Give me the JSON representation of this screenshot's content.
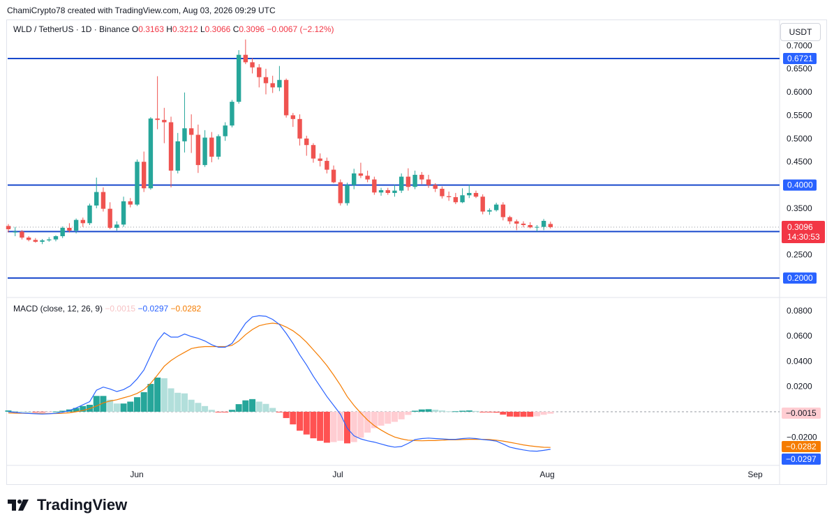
{
  "header": {
    "attribution": "ChamiCrypto78 created with TradingView.com, Aug 03, 2026 09:29 UTC",
    "symbol": "WLD / TetherUS · 1D · Binance",
    "o_label": "O",
    "o_value": "0.3163",
    "h_label": "H",
    "h_value": "0.3212",
    "l_label": "L",
    "l_value": "0.3066",
    "c_label": "C",
    "c_value": "0.3096",
    "change": "−0.0067 (−2.12%)",
    "currency_button": "USDT"
  },
  "macd_legend": {
    "title": "MACD (close, 12, 26, 9)",
    "hist": "−0.0015",
    "macd": "−0.0297",
    "signal": "−0.0282"
  },
  "footer": {
    "brand": "TradingView",
    "logo_icon": "tradingview-logo-icon"
  },
  "colors": {
    "up": "#26a69a",
    "down": "#ef5350",
    "level": "#1848cc",
    "macd": "#2962ff",
    "signal": "#f57c00",
    "tag_blue": "#2962ff",
    "tag_red": "#f23645"
  },
  "chart_data": [
    {
      "type": "candlestick",
      "ylim": [
        0.18,
        0.72
      ],
      "y_ticks": [
        "0.7000",
        "0.6500",
        "0.6000",
        "0.5500",
        "0.5000",
        "0.4500",
        "0.4000",
        "0.3500",
        "0.3000",
        "0.2500",
        "0.2000"
      ],
      "x_ticks": [
        "Jun",
        "Jul",
        "Aug",
        "Sep"
      ],
      "horizontal_levels": [
        {
          "value": 0.6721,
          "label": "0.6721"
        },
        {
          "value": 0.4,
          "label": "0.4000"
        },
        {
          "value": 0.3,
          "label": "0.3000"
        },
        {
          "value": 0.2,
          "label": "0.2000"
        }
      ],
      "last_price": {
        "value": 0.3096,
        "label": "0.3096",
        "countdown": "14:30:53"
      },
      "ohlc": [
        [
          0.312,
          0.316,
          0.298,
          0.305
        ],
        [
          0.298,
          0.31,
          0.29,
          0.3
        ],
        [
          0.3,
          0.303,
          0.283,
          0.287
        ],
        [
          0.287,
          0.29,
          0.279,
          0.282
        ],
        [
          0.282,
          0.286,
          0.276,
          0.278
        ],
        [
          0.278,
          0.284,
          0.273,
          0.281
        ],
        [
          0.281,
          0.288,
          0.278,
          0.283
        ],
        [
          0.283,
          0.292,
          0.279,
          0.29
        ],
        [
          0.29,
          0.311,
          0.286,
          0.308
        ],
        [
          0.308,
          0.318,
          0.298,
          0.302
        ],
        [
          0.302,
          0.328,
          0.296,
          0.325
        ],
        [
          0.325,
          0.33,
          0.31,
          0.318
        ],
        [
          0.318,
          0.36,
          0.314,
          0.356
        ],
        [
          0.356,
          0.416,
          0.35,
          0.385
        ],
        [
          0.385,
          0.395,
          0.343,
          0.349
        ],
        [
          0.349,
          0.363,
          0.305,
          0.308
        ],
        [
          0.308,
          0.322,
          0.302,
          0.315
        ],
        [
          0.315,
          0.375,
          0.31,
          0.365
        ],
        [
          0.365,
          0.372,
          0.352,
          0.358
        ],
        [
          0.358,
          0.455,
          0.355,
          0.45
        ],
        [
          0.45,
          0.472,
          0.385,
          0.393
        ],
        [
          0.393,
          0.546,
          0.39,
          0.543
        ],
        [
          0.543,
          0.634,
          0.52,
          0.54
        ],
        [
          0.54,
          0.566,
          0.49,
          0.535
        ],
        [
          0.535,
          0.547,
          0.395,
          0.431
        ],
        [
          0.431,
          0.512,
          0.425,
          0.494
        ],
        [
          0.494,
          0.599,
          0.47,
          0.522
        ],
        [
          0.522,
          0.552,
          0.469,
          0.508
        ],
        [
          0.508,
          0.53,
          0.426,
          0.443
        ],
        [
          0.443,
          0.518,
          0.439,
          0.502
        ],
        [
          0.502,
          0.514,
          0.449,
          0.461
        ],
        [
          0.461,
          0.509,
          0.455,
          0.505
        ],
        [
          0.505,
          0.535,
          0.495,
          0.528
        ],
        [
          0.528,
          0.583,
          0.524,
          0.579
        ],
        [
          0.579,
          0.69,
          0.575,
          0.68
        ],
        [
          0.68,
          0.713,
          0.66,
          0.664
        ],
        [
          0.664,
          0.673,
          0.64,
          0.653
        ],
        [
          0.653,
          0.66,
          0.61,
          0.632
        ],
        [
          0.632,
          0.65,
          0.595,
          0.619
        ],
        [
          0.619,
          0.635,
          0.598,
          0.61
        ],
        [
          0.61,
          0.656,
          0.602,
          0.626
        ],
        [
          0.626,
          0.629,
          0.545,
          0.55
        ],
        [
          0.55,
          0.555,
          0.525,
          0.542
        ],
        [
          0.542,
          0.552,
          0.485,
          0.5
        ],
        [
          0.5,
          0.506,
          0.463,
          0.486
        ],
        [
          0.486,
          0.49,
          0.448,
          0.457
        ],
        [
          0.457,
          0.468,
          0.44,
          0.452
        ],
        [
          0.452,
          0.459,
          0.425,
          0.433
        ],
        [
          0.433,
          0.442,
          0.404,
          0.406
        ],
        [
          0.406,
          0.412,
          0.356,
          0.361
        ],
        [
          0.361,
          0.405,
          0.356,
          0.4
        ],
        [
          0.4,
          0.435,
          0.391,
          0.425
        ],
        [
          0.425,
          0.448,
          0.415,
          0.42
        ],
        [
          0.42,
          0.431,
          0.406,
          0.412
        ],
        [
          0.412,
          0.418,
          0.379,
          0.384
        ],
        [
          0.384,
          0.394,
          0.377,
          0.389
        ],
        [
          0.389,
          0.394,
          0.379,
          0.383
        ],
        [
          0.383,
          0.401,
          0.375,
          0.388
        ],
        [
          0.388,
          0.425,
          0.383,
          0.418
        ],
        [
          0.418,
          0.436,
          0.388,
          0.396
        ],
        [
          0.396,
          0.431,
          0.391,
          0.422
        ],
        [
          0.422,
          0.428,
          0.402,
          0.412
        ],
        [
          0.412,
          0.422,
          0.394,
          0.4
        ],
        [
          0.4,
          0.404,
          0.385,
          0.392
        ],
        [
          0.392,
          0.397,
          0.371,
          0.376
        ],
        [
          0.376,
          0.386,
          0.366,
          0.374
        ],
        [
          0.374,
          0.383,
          0.359,
          0.363
        ],
        [
          0.363,
          0.393,
          0.361,
          0.378
        ],
        [
          0.378,
          0.401,
          0.372,
          0.383
        ],
        [
          0.383,
          0.388,
          0.372,
          0.375
        ],
        [
          0.375,
          0.38,
          0.337,
          0.343
        ],
        [
          0.343,
          0.35,
          0.336,
          0.346
        ],
        [
          0.346,
          0.362,
          0.343,
          0.358
        ],
        [
          0.358,
          0.363,
          0.324,
          0.331
        ],
        [
          0.331,
          0.334,
          0.316,
          0.322
        ],
        [
          0.322,
          0.326,
          0.303,
          0.317
        ],
        [
          0.317,
          0.322,
          0.309,
          0.314
        ],
        [
          0.314,
          0.32,
          0.307,
          0.309
        ],
        [
          0.309,
          0.314,
          0.3,
          0.31
        ],
        [
          0.31,
          0.327,
          0.303,
          0.323
        ],
        [
          0.3163,
          0.3212,
          0.3066,
          0.3096
        ]
      ]
    },
    {
      "type": "macd",
      "title": "MACD (close, 12, 26, 9)",
      "ylim": [
        -0.043,
        0.088
      ],
      "y_ticks": [
        "0.0800",
        "0.0600",
        "0.0400",
        "0.0200",
        "−0.0200"
      ],
      "value_tags": [
        {
          "value": -0.0015,
          "label": "−0.0015"
        },
        {
          "value": -0.0282,
          "label": "−0.0282"
        },
        {
          "value": -0.0297,
          "label": "−0.0297"
        }
      ],
      "series": [
        {
          "name": "MACD",
          "values": [
            0.0,
            -0.0005,
            -0.001,
            -0.0013,
            -0.0016,
            -0.0018,
            -0.0016,
            -0.0012,
            -0.0004,
            0.001,
            0.003,
            0.0055,
            0.008,
            0.017,
            0.0195,
            0.018,
            0.016,
            0.0175,
            0.0205,
            0.026,
            0.033,
            0.0445,
            0.056,
            0.0625,
            0.059,
            0.059,
            0.0615,
            0.0595,
            0.058,
            0.056,
            0.053,
            0.051,
            0.051,
            0.054,
            0.062,
            0.07,
            0.075,
            0.076,
            0.0755,
            0.073,
            0.069,
            0.062,
            0.054,
            0.045,
            0.037,
            0.028,
            0.02,
            0.012,
            0.005,
            -0.002,
            -0.013,
            -0.019,
            -0.0215,
            -0.023,
            -0.024,
            -0.0255,
            -0.027,
            -0.028,
            -0.0275,
            -0.025,
            -0.022,
            -0.0212,
            -0.0208,
            -0.0212,
            -0.0215,
            -0.0218,
            -0.0218,
            -0.0212,
            -0.0208,
            -0.0212,
            -0.022,
            -0.0225,
            -0.0232,
            -0.0255,
            -0.028,
            -0.0292,
            -0.0302,
            -0.031,
            -0.0312,
            -0.0305,
            -0.0297
          ]
        },
        {
          "name": "Signal",
          "values": [
            -0.001,
            -0.0011,
            -0.0012,
            -0.0013,
            -0.0014,
            -0.0015,
            -0.0015,
            -0.0014,
            -0.0012,
            -0.0008,
            0.0,
            0.001,
            0.0025,
            0.0045,
            0.007,
            0.0085,
            0.0095,
            0.011,
            0.0125,
            0.0145,
            0.0175,
            0.0225,
            0.029,
            0.036,
            0.0405,
            0.044,
            0.047,
            0.05,
            0.051,
            0.0515,
            0.0515,
            0.0515,
            0.0515,
            0.0525,
            0.056,
            0.061,
            0.065,
            0.068,
            0.0693,
            0.07,
            0.0693,
            0.067,
            0.064,
            0.06,
            0.055,
            0.049,
            0.043,
            0.0365,
            0.029,
            0.021,
            0.012,
            0.005,
            -0.001,
            -0.0065,
            -0.011,
            -0.0145,
            -0.0175,
            -0.02,
            -0.0215,
            -0.0225,
            -0.0228,
            -0.023,
            -0.0228,
            -0.0228,
            -0.0225,
            -0.0222,
            -0.0222,
            -0.022,
            -0.0218,
            -0.0218,
            -0.0218,
            -0.022,
            -0.0225,
            -0.0232,
            -0.0242,
            -0.0252,
            -0.0262,
            -0.027,
            -0.0276,
            -0.0281,
            -0.0282
          ]
        },
        {
          "name": "Histogram",
          "values": [
            0.001,
            0.0006,
            0.0002,
            0.0,
            -0.0002,
            -0.0003,
            -0.0001,
            0.0002,
            0.0008,
            0.0018,
            0.003,
            0.0045,
            0.0055,
            0.0125,
            0.0125,
            0.0095,
            0.0065,
            0.0065,
            0.008,
            0.0115,
            0.0155,
            0.022,
            0.027,
            0.0265,
            0.0185,
            0.015,
            0.0145,
            0.0095,
            0.007,
            0.0045,
            0.0015,
            -0.0005,
            -0.0005,
            0.0015,
            0.006,
            0.009,
            0.01,
            0.008,
            0.0062,
            0.003,
            -0.0003,
            -0.005,
            -0.01,
            -0.015,
            -0.018,
            -0.021,
            -0.023,
            -0.0245,
            -0.024,
            -0.023,
            -0.025,
            -0.024,
            -0.0205,
            -0.0165,
            -0.013,
            -0.011,
            -0.0095,
            -0.008,
            -0.006,
            -0.0025,
            0.0008,
            0.0018,
            0.002,
            0.0016,
            0.001,
            0.0004,
            0.0004,
            0.0008,
            0.001,
            0.0006,
            -0.0002,
            -0.0005,
            -0.0007,
            -0.0023,
            -0.0038,
            -0.004,
            -0.004,
            -0.004,
            -0.0036,
            -0.0024,
            -0.0015
          ]
        }
      ]
    }
  ]
}
